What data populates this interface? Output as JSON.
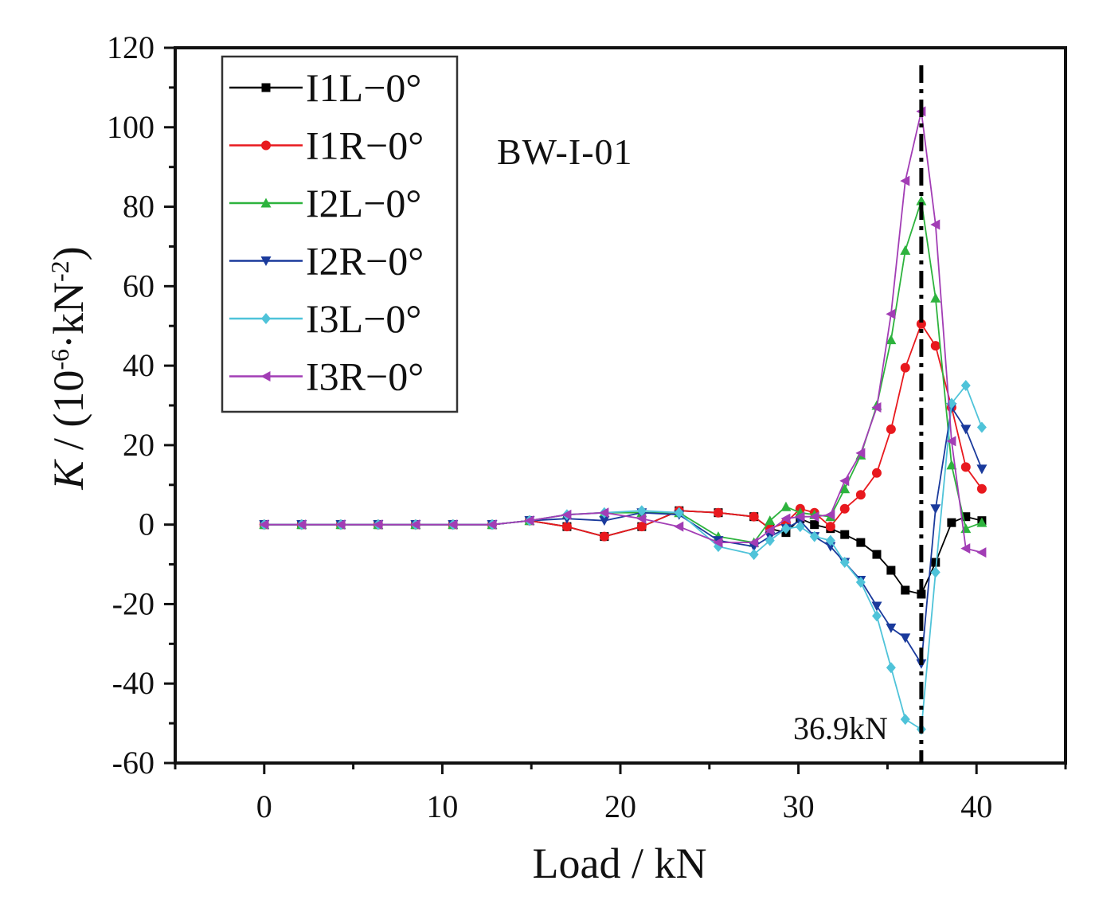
{
  "chart_data": {
    "type": "line",
    "title": "",
    "annotation": "BW-I-01",
    "marker_label": "36.9kN",
    "marker_x": 36.9,
    "xlabel": "Load / kN",
    "ylabel": {
      "var": "K",
      "sep": " / (10",
      "exp1": "-6",
      "mid": "·kN",
      "exp2": "-2",
      "end": ")"
    },
    "xlim": [
      -5,
      45
    ],
    "ylim": [
      -60,
      120
    ],
    "xticks": [
      0,
      10,
      20,
      30,
      40
    ],
    "yticks": [
      -60,
      -40,
      -20,
      0,
      20,
      40,
      60,
      80,
      100,
      120
    ],
    "legend_position": "top-left",
    "series": [
      {
        "name": "I1L−0°",
        "color": "#000000",
        "marker": "square",
        "x": [
          0,
          2.1,
          4.3,
          6.4,
          8.5,
          10.6,
          12.8,
          14.9,
          17.0,
          19.1,
          21.2,
          23.3,
          25.5,
          27.5,
          28.4,
          29.3,
          30.1,
          30.9,
          31.8,
          32.6,
          33.5,
          34.4,
          35.2,
          36.0,
          36.9,
          37.7,
          38.6,
          39.4,
          40.3
        ],
        "y": [
          0,
          0,
          0,
          0,
          0,
          0,
          0,
          1,
          -0.5,
          -3,
          -0.5,
          3.5,
          3,
          2,
          -1,
          -2,
          1.5,
          0,
          -1,
          -2.5,
          -4.5,
          -7.5,
          -11.5,
          -16.5,
          -17.5,
          -9.5,
          0.5,
          2,
          1
        ]
      },
      {
        "name": "I1R−0°",
        "color": "#e8191e",
        "marker": "circle",
        "x": [
          0,
          2.1,
          4.3,
          6.4,
          8.5,
          10.6,
          12.8,
          14.9,
          17.0,
          19.1,
          21.2,
          23.3,
          25.5,
          27.5,
          28.4,
          29.3,
          30.1,
          30.9,
          31.8,
          32.6,
          33.5,
          34.4,
          35.2,
          36.0,
          36.9,
          37.7,
          38.6,
          39.4,
          40.3
        ],
        "y": [
          0,
          0,
          0,
          0,
          0,
          0,
          0,
          1,
          -0.5,
          -3,
          -0.5,
          3.5,
          3,
          2,
          -1,
          0.5,
          4,
          3,
          -0.5,
          4,
          7.5,
          13,
          24,
          39.5,
          50.5,
          45,
          29.5,
          14.5,
          9
        ]
      },
      {
        "name": "I2L−0°",
        "color": "#2db33d",
        "marker": "triangle-up",
        "x": [
          0,
          2.1,
          4.3,
          6.4,
          8.5,
          10.6,
          12.8,
          14.9,
          17.0,
          19.1,
          21.2,
          23.3,
          25.5,
          27.5,
          28.4,
          29.3,
          30.1,
          30.9,
          31.8,
          32.6,
          33.5,
          34.4,
          35.2,
          36.0,
          36.9,
          37.7,
          38.6,
          39.4,
          40.3
        ],
        "y": [
          0,
          0,
          0,
          0,
          0,
          0,
          0,
          1,
          2.5,
          3,
          3,
          3,
          -3,
          -4.5,
          1,
          4.5,
          3,
          2.5,
          2,
          9,
          17.5,
          30,
          46.5,
          69,
          81.5,
          57,
          15,
          -1,
          0.5
        ]
      },
      {
        "name": "I2R−0°",
        "color": "#1a3a9c",
        "marker": "triangle-down",
        "x": [
          0,
          2.1,
          4.3,
          6.4,
          8.5,
          10.6,
          12.8,
          14.9,
          17.0,
          19.1,
          21.2,
          23.3,
          25.5,
          27.5,
          28.4,
          29.3,
          30.1,
          30.9,
          31.8,
          32.6,
          33.5,
          34.4,
          35.2,
          36.0,
          36.9,
          37.7,
          38.6,
          39.4,
          40.3
        ],
        "y": [
          0,
          0,
          0,
          0,
          0,
          0,
          0,
          1,
          1.5,
          1,
          3,
          2.5,
          -4,
          -5.5,
          -3,
          -1,
          1,
          -3,
          -5.5,
          -9.5,
          -14,
          -20.5,
          -26,
          -28.5,
          -35,
          4,
          29.5,
          24,
          14
        ]
      },
      {
        "name": "I3L−0°",
        "color": "#4fc3d9",
        "marker": "diamond",
        "x": [
          0,
          2.1,
          4.3,
          6.4,
          8.5,
          10.6,
          12.8,
          14.9,
          17.0,
          19.1,
          21.2,
          23.3,
          25.5,
          27.5,
          28.4,
          29.3,
          30.1,
          30.9,
          31.8,
          32.6,
          33.5,
          34.4,
          35.2,
          36.0,
          36.9,
          37.7,
          38.6,
          39.4,
          40.3
        ],
        "y": [
          0,
          0,
          0,
          0,
          0,
          0,
          0,
          1,
          2.5,
          3,
          3.5,
          3,
          -5.5,
          -7.5,
          -4,
          -1,
          -0.5,
          -3,
          -4,
          -9.5,
          -14.5,
          -23,
          -36,
          -49,
          -51.5,
          -12,
          30.5,
          35,
          24.5
        ]
      },
      {
        "name": "I3R−0°",
        "color": "#a23db5",
        "marker": "triangle-left",
        "x": [
          0,
          2.1,
          4.3,
          6.4,
          8.5,
          10.6,
          12.8,
          14.9,
          17.0,
          19.1,
          21.2,
          23.3,
          25.5,
          27.5,
          28.4,
          29.3,
          30.1,
          30.9,
          31.8,
          32.6,
          33.5,
          34.4,
          35.2,
          36.0,
          36.9,
          37.7,
          38.6,
          39.4,
          40.3
        ],
        "y": [
          0,
          0,
          0,
          0,
          0,
          0,
          0,
          1,
          2.5,
          3,
          1.5,
          -0.5,
          -4.5,
          -4.5,
          -1.5,
          1.5,
          2,
          2,
          2.5,
          11,
          18,
          29.5,
          53,
          86.5,
          104,
          75.5,
          21,
          -6,
          -7
        ]
      }
    ]
  }
}
